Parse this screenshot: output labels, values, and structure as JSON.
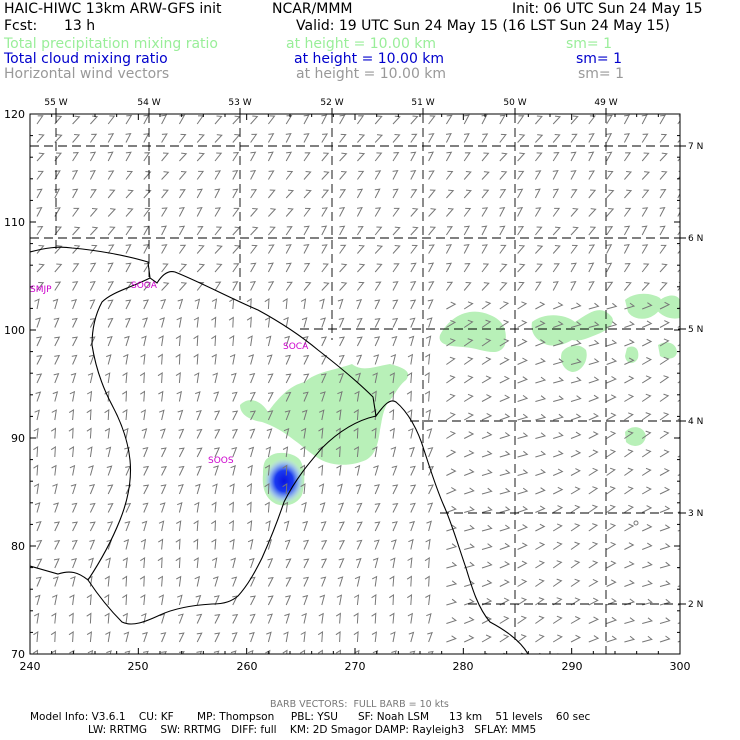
{
  "header": {
    "model_title": "HAIC-HIWC 13km ARW-GFS init",
    "org": "NCAR/MMM",
    "init_time": "Init: 06 UTC Sun 24 May 15",
    "fcst_label": "Fcst:",
    "fcst_value": "13 h",
    "valid_time": "Valid: 19 UTC Sun 24 May 15 (16 LST Sun 24 May 15)"
  },
  "fields": [
    {
      "name": "Total precipitation mixing ratio",
      "height": "at height = 10.00 km",
      "sm": "sm= 1",
      "color": "#99ee99"
    },
    {
      "name": "Total cloud mixing ratio",
      "height": "at height = 10.00 km",
      "sm": "sm= 1",
      "color": "#0000cc"
    },
    {
      "name": "Horizontal wind vectors",
      "height": "at height = 10.00 km",
      "sm": "sm= 1",
      "color": "#999999"
    }
  ],
  "map": {
    "x_ticks": [
      "240",
      "250",
      "260",
      "270",
      "280",
      "290",
      "300"
    ],
    "x_range": [
      240,
      300
    ],
    "y_ticks": [
      "70",
      "80",
      "90",
      "100",
      "110",
      "120"
    ],
    "y_range": [
      70,
      120
    ],
    "lon_labels": [
      "55 W",
      "54 W",
      "53 W",
      "52 W",
      "51 W",
      "50 W",
      "49 W"
    ],
    "lat_labels": [
      "7 N",
      "6 N",
      "5 N",
      "4 N",
      "3 N",
      "2 N"
    ],
    "stations": [
      "SMJP",
      "SOCA",
      "SOOA",
      "SOOS"
    ],
    "colors": {
      "coast": "#000000",
      "grid": "#000000",
      "barbs": "#777777",
      "precip": "#b8f0b8",
      "cloud": "#0a1ee6",
      "station": "#cc00cc"
    }
  },
  "footer": {
    "barb_note": "BARB VECTORS:  FULL BARB = 10 kts",
    "line1": "Model Info: V3.6.1    CU: KF       MP: Thompson     PBL: YSU      SF: Noah LSM      13 km    51 levels    60 sec",
    "line2": "LW: RRTMG    SW: RRTMG   DIFF: full    KM: 2D Smagor DAMP: Rayleigh3   SFLAY: MM5"
  }
}
